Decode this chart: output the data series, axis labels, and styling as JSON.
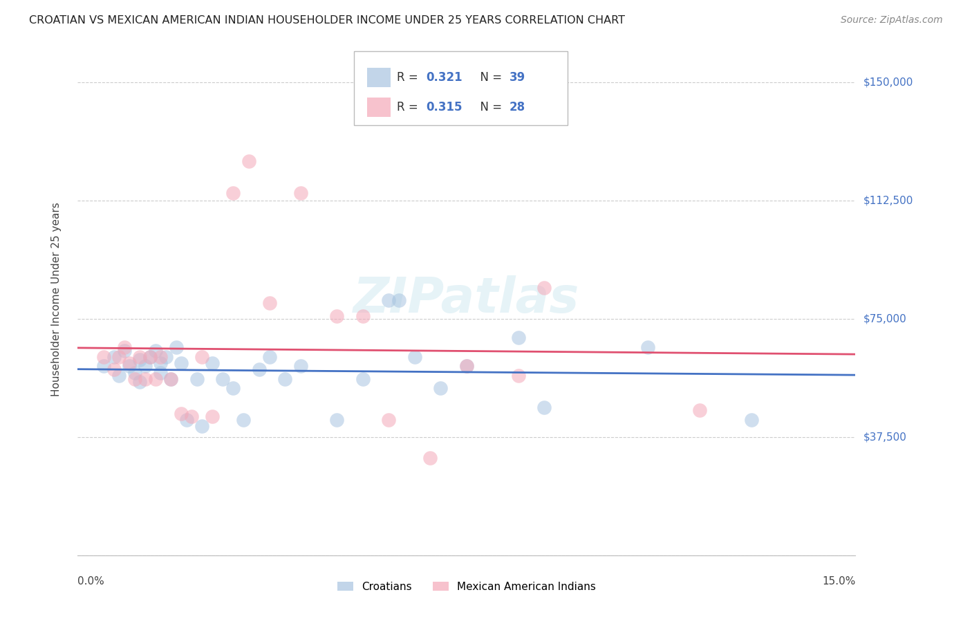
{
  "title": "CROATIAN VS MEXICAN AMERICAN INDIAN HOUSEHOLDER INCOME UNDER 25 YEARS CORRELATION CHART",
  "source": "Source: ZipAtlas.com",
  "ylabel": "Householder Income Under 25 years",
  "xlim": [
    0.0,
    0.15
  ],
  "ylim": [
    0,
    162500
  ],
  "yticks": [
    0,
    37500,
    75000,
    112500,
    150000
  ],
  "background_color": "#ffffff",
  "watermark": "ZIPatlas",
  "legend_R1": "0.321",
  "legend_N1": "39",
  "legend_R2": "0.315",
  "legend_N2": "28",
  "croatian_color": "#a8c4e0",
  "mexican_color": "#f4a8b8",
  "croatian_line_color": "#4472c4",
  "mexican_line_color": "#e05070",
  "ytick_right_labels": [
    "$150,000",
    "$112,500",
    "$75,000",
    "$37,500"
  ],
  "ytick_right_values": [
    150000,
    112500,
    75000,
    37500
  ],
  "croatian_x": [
    0.005,
    0.007,
    0.008,
    0.009,
    0.01,
    0.011,
    0.012,
    0.012,
    0.013,
    0.014,
    0.015,
    0.016,
    0.016,
    0.017,
    0.018,
    0.019,
    0.02,
    0.021,
    0.023,
    0.024,
    0.026,
    0.028,
    0.03,
    0.032,
    0.035,
    0.037,
    0.04,
    0.043,
    0.05,
    0.055,
    0.06,
    0.062,
    0.065,
    0.07,
    0.075,
    0.085,
    0.09,
    0.11,
    0.13
  ],
  "croatian_y": [
    60000,
    63000,
    57000,
    65000,
    60000,
    58000,
    62000,
    55000,
    60000,
    63000,
    65000,
    58000,
    61000,
    63000,
    56000,
    66000,
    61000,
    43000,
    56000,
    41000,
    61000,
    56000,
    53000,
    43000,
    59000,
    63000,
    56000,
    60000,
    43000,
    56000,
    81000,
    81000,
    63000,
    53000,
    60000,
    69000,
    47000,
    66000,
    43000
  ],
  "mexican_x": [
    0.005,
    0.007,
    0.008,
    0.009,
    0.01,
    0.011,
    0.012,
    0.013,
    0.014,
    0.015,
    0.016,
    0.018,
    0.02,
    0.022,
    0.024,
    0.026,
    0.03,
    0.033,
    0.037,
    0.043,
    0.05,
    0.055,
    0.06,
    0.068,
    0.075,
    0.085,
    0.09,
    0.12
  ],
  "mexican_y": [
    63000,
    59000,
    63000,
    66000,
    61000,
    56000,
    63000,
    56000,
    63000,
    56000,
    63000,
    56000,
    45000,
    44000,
    63000,
    44000,
    115000,
    125000,
    80000,
    115000,
    76000,
    76000,
    43000,
    31000,
    60000,
    57000,
    85000,
    46000
  ]
}
